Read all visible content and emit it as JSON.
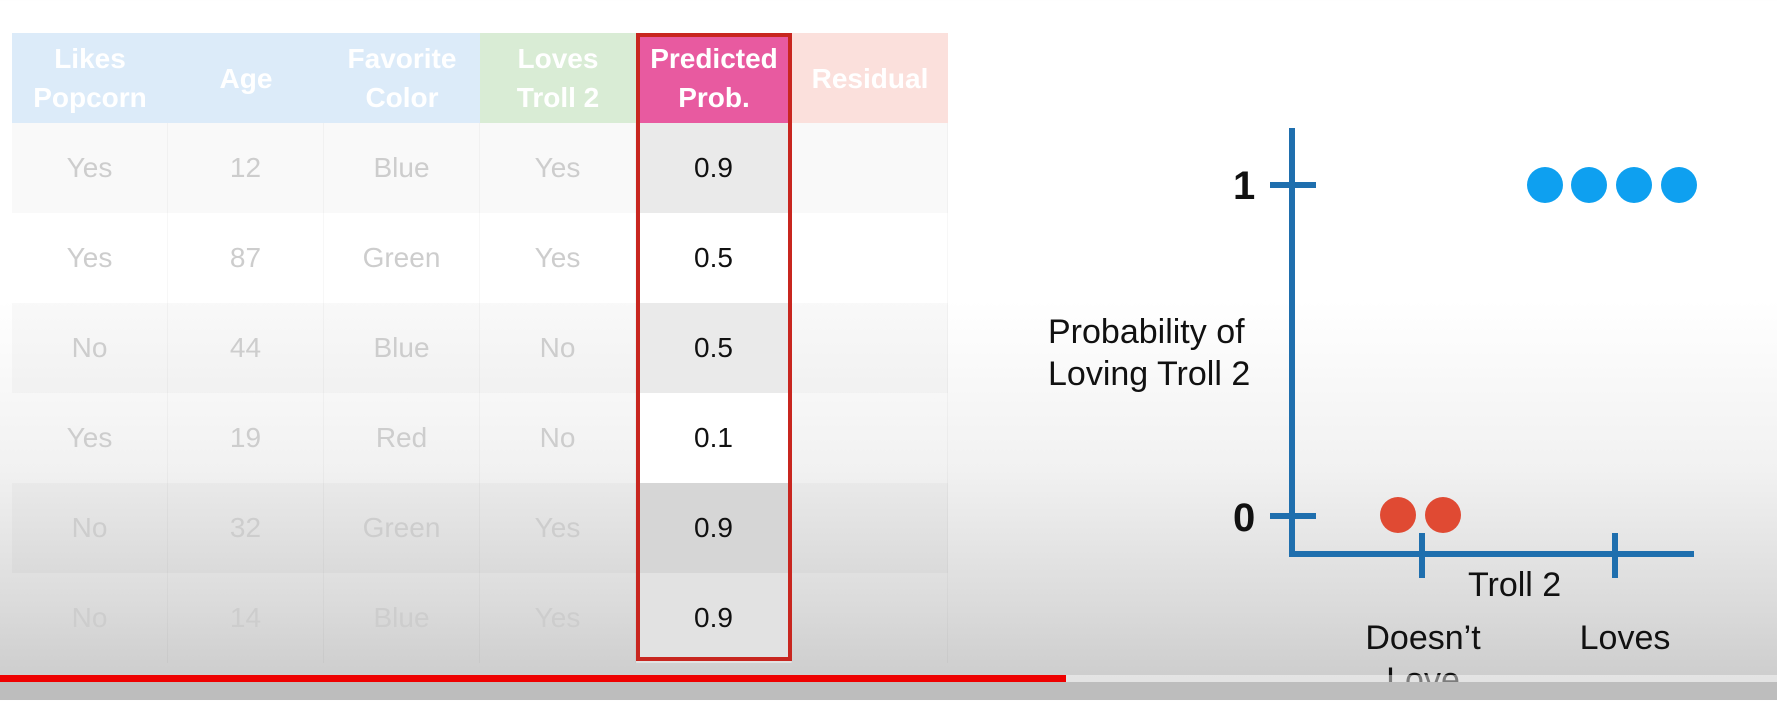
{
  "table": {
    "headers": [
      {
        "label": "Likes\nPopcorn",
        "color": "#dcebf9"
      },
      {
        "label": "Age",
        "color": "#dcebf9"
      },
      {
        "label": "Favorite\nColor",
        "color": "#dcebf9"
      },
      {
        "label": "Loves\nTroll 2",
        "color": "#d9ecd5"
      },
      {
        "label": "Predicted\nProb.",
        "color": "#e85aa0"
      },
      {
        "label": "Residual",
        "color": "#fbe0dc"
      }
    ],
    "rows": [
      {
        "likes_popcorn": "Yes",
        "age": "12",
        "favorite_color": "Blue",
        "loves_troll2": "Yes",
        "predicted_prob": "0.9",
        "residual": ""
      },
      {
        "likes_popcorn": "Yes",
        "age": "87",
        "favorite_color": "Green",
        "loves_troll2": "Yes",
        "predicted_prob": "0.5",
        "residual": ""
      },
      {
        "likes_popcorn": "No",
        "age": "44",
        "favorite_color": "Blue",
        "loves_troll2": "No",
        "predicted_prob": "0.5",
        "residual": ""
      },
      {
        "likes_popcorn": "Yes",
        "age": "19",
        "favorite_color": "Red",
        "loves_troll2": "No",
        "predicted_prob": "0.1",
        "residual": ""
      },
      {
        "likes_popcorn": "No",
        "age": "32",
        "favorite_color": "Green",
        "loves_troll2": "Yes",
        "predicted_prob": "0.9",
        "residual": ""
      },
      {
        "likes_popcorn": "No",
        "age": "14",
        "favorite_color": "Blue",
        "loves_troll2": "Yes",
        "predicted_prob": "0.9",
        "residual": ""
      }
    ],
    "highlight_color": "#c8261f"
  },
  "plot": {
    "ylabel": "Probability of\nLoving Troll 2",
    "xlabel": "Troll 2",
    "y_tick_1": "1",
    "y_tick_0": "0",
    "x_tick_doesnt_love": "Doesn’t\nLove",
    "x_tick_loves": "Loves",
    "axis_color": "#1f6fae",
    "loves_color": "#0ea0f0",
    "doesnt_love_color": "#e04a33",
    "loves_points": 4,
    "doesnt_love_points": 2
  },
  "player": {
    "progress_fraction": 0.6,
    "progress_color": "#ee0000"
  }
}
